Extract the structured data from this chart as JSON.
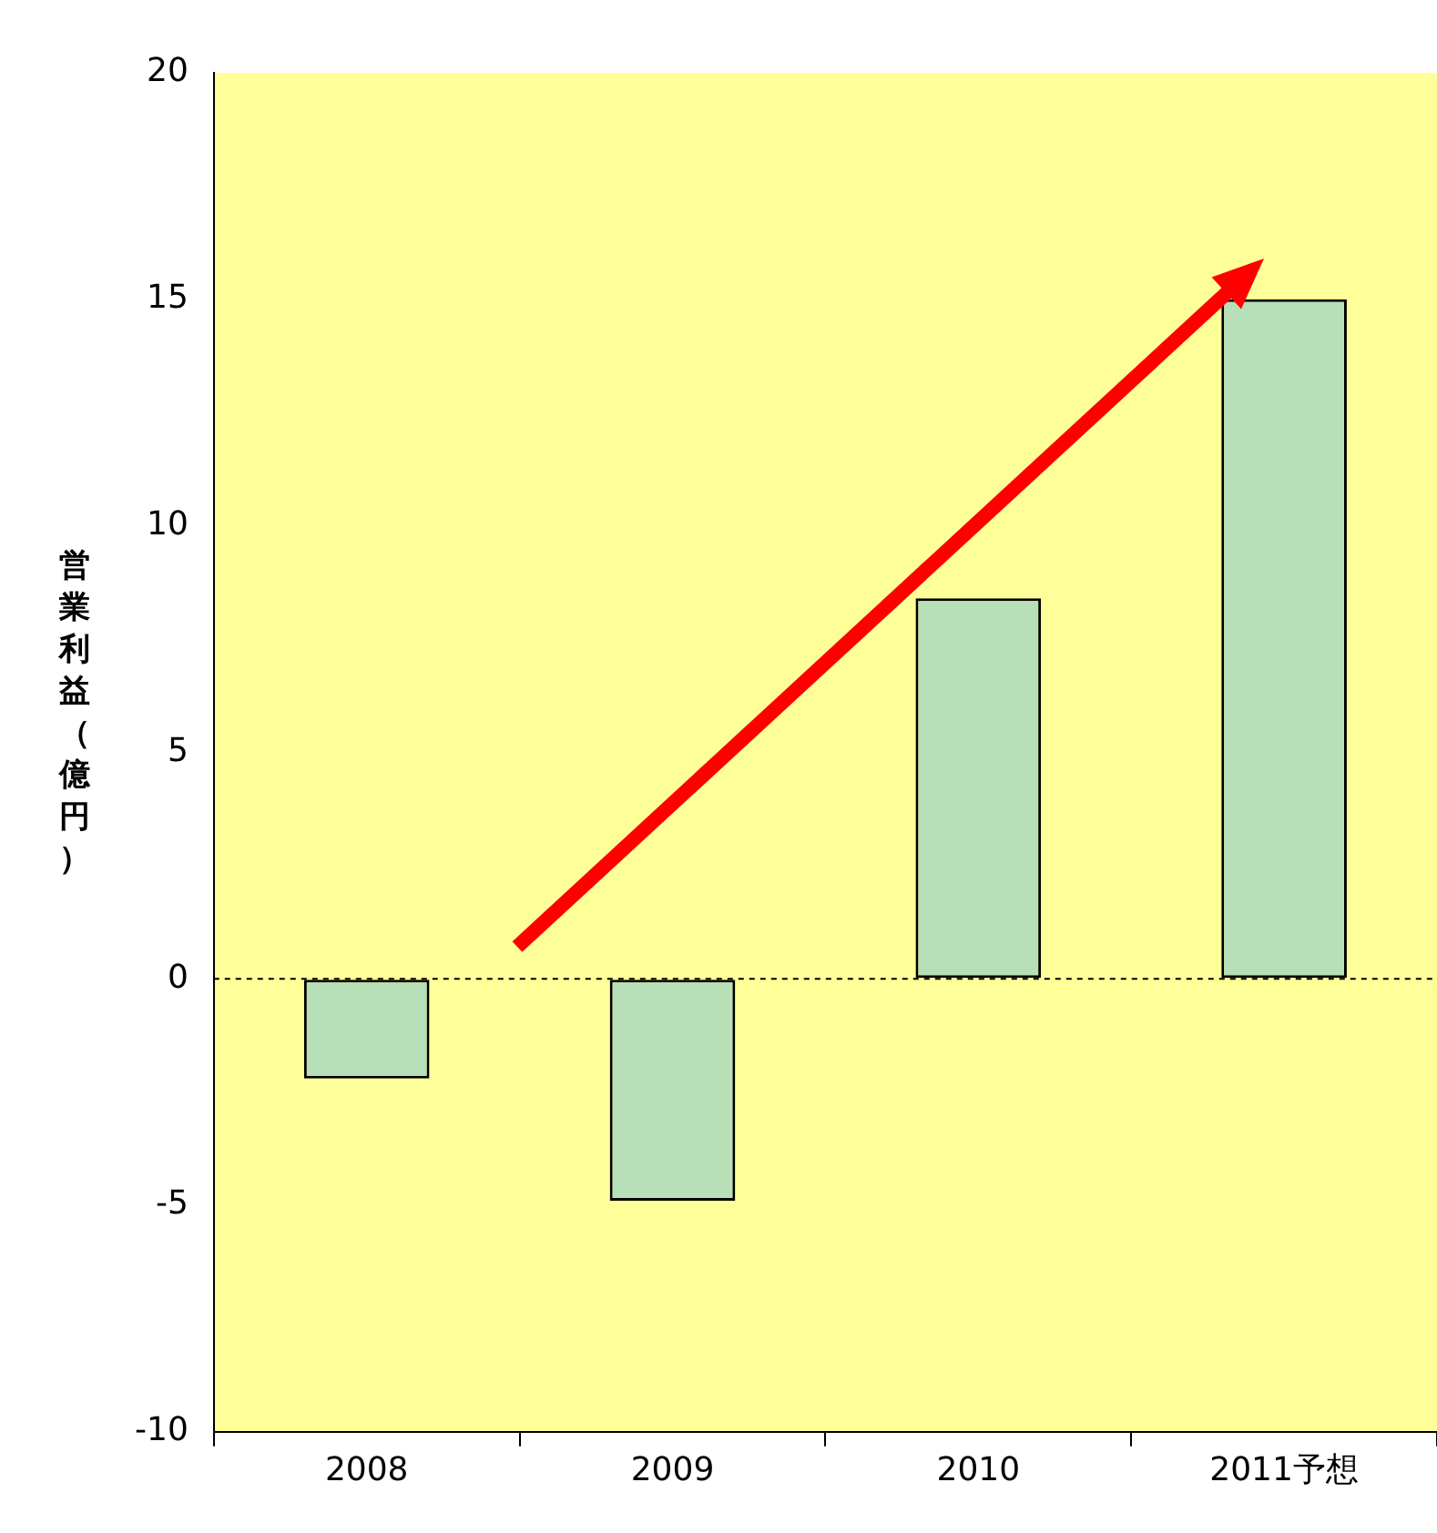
{
  "chart_data": {
    "type": "bar",
    "ylabel": "営業利益（億円）",
    "categories": [
      "2008",
      "2009",
      "2010",
      "2011予想"
    ],
    "values": [
      -2.2,
      -4.9,
      8.4,
      15.0
    ],
    "color": "#b8e0b8",
    "ylim": [
      -10,
      20
    ],
    "yticks": [
      -10,
      -5,
      0,
      5,
      10,
      15,
      20
    ],
    "grid": false,
    "legend": false,
    "ref_lines": [
      {
        "axis": "y",
        "value": 0,
        "line_style": "dotted",
        "color": "#000000"
      }
    ]
  }
}
